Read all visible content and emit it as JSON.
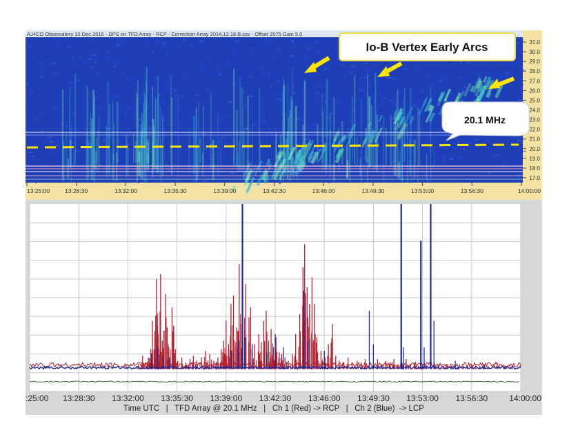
{
  "colors": {
    "spectrogram_bg": "#1f3fb8",
    "spectrogram_bright": "#3fd6c8",
    "freq_axis_bg": "#f3e2a3",
    "dashed_line": "#ffe600",
    "callout_border": "#e6d94a",
    "arrow": "#ffe600",
    "series_rcp": "#b21f2d",
    "series_lcp": "#1a2a9c",
    "series_baseline": "#2f6b22",
    "grid": "#c8c8c8"
  },
  "spectrogram": {
    "header": "AJ4CO Observatory 10 Dec 2016  -  DPS on TFD Array  -  RCP  -  Correction Array 2014.12.18 B.csv  -  Offset 2075  Gain 5.0",
    "callout_title": "Io-B Vertex Early Arcs",
    "callout_freq": "20.1 MHz",
    "arrow_icons": [
      "arrow-icon",
      "arrow-icon",
      "arrow-icon"
    ]
  },
  "chart_data": [
    {
      "type": "heatmap",
      "title": "AJ4CO Observatory 10 Dec 2016  -  DPS on TFD Array  -  RCP  -  Correction Array 2014.12.18 B.csv  -  Offset 2075  Gain 5.0",
      "x_ticks": [
        "13:25:00",
        "13:28:30",
        "13:32:00",
        "13:35:30",
        "13:39:00",
        "13:42:30",
        "13:46:00",
        "13:49:30",
        "13:53:00",
        "13:56:30",
        "14:00:00"
      ],
      "y_ticks": [
        "31.0",
        "30.0",
        "29.0",
        "28.0",
        "27.0",
        "26.0",
        "25.0",
        "24.0",
        "23.0",
        "22.0",
        "21.0",
        "20.0",
        "19.0",
        "18.0",
        "17.0"
      ],
      "ylim": [
        16.5,
        31.5
      ],
      "marker_frequency": 20.1,
      "annotation": "Io-B Vertex Early Arcs"
    },
    {
      "type": "line",
      "xlabel": "Time UTC   |   TFD Array @ 20.1 MHz   |   Ch 1 (Red) -> RCP   |   Ch 2 (Blue)  -> LCP",
      "x_ticks": [
        ":25:00",
        "13:28:30",
        "13:32:00",
        "13:35:30",
        "13:39:00",
        "13:42:30",
        "13:46:00",
        "13:49:30",
        "13:53:00",
        "13:56:30",
        "14:00:00"
      ],
      "ylim": [
        0,
        100
      ],
      "grid": true,
      "series": [
        {
          "name": "Ch 1 (Red) -> RCP",
          "peaks": [
            [
              13.3,
              4
            ],
            [
              13.8,
              9
            ],
            [
              14.2,
              5
            ],
            [
              14.5,
              8
            ],
            [
              14.8,
              13
            ],
            [
              15.0,
              30
            ],
            [
              15.2,
              12
            ],
            [
              15.4,
              33
            ],
            [
              15.5,
              55
            ],
            [
              15.7,
              22
            ],
            [
              15.9,
              10
            ],
            [
              16.0,
              58
            ],
            [
              16.2,
              18
            ],
            [
              16.4,
              24
            ],
            [
              16.6,
              46
            ],
            [
              16.8,
              26
            ],
            [
              17.0,
              14
            ],
            [
              17.4,
              38
            ],
            [
              17.6,
              27
            ],
            [
              17.8,
              13
            ],
            [
              18.1,
              6
            ],
            [
              18.6,
              8
            ],
            [
              19.1,
              5
            ],
            [
              19.6,
              7
            ],
            [
              20.0,
              9
            ],
            [
              20.4,
              6
            ],
            [
              21.0,
              8
            ],
            [
              21.5,
              12
            ],
            [
              22.0,
              10
            ],
            [
              22.5,
              6
            ],
            [
              23.0,
              8
            ],
            [
              23.4,
              13
            ],
            [
              23.7,
              18
            ],
            [
              24.0,
              30
            ],
            [
              24.3,
              16
            ],
            [
              24.6,
              40
            ],
            [
              24.9,
              45
            ],
            [
              25.3,
              26
            ],
            [
              25.6,
              64
            ],
            [
              25.8,
              28
            ],
            [
              26.0,
              35
            ],
            [
              26.4,
              52
            ],
            [
              26.8,
              32
            ],
            [
              27.0,
              38
            ],
            [
              27.5,
              16
            ],
            [
              28.0,
              22
            ],
            [
              28.3,
              17
            ],
            [
              28.6,
              30
            ],
            [
              28.9,
              36
            ],
            [
              29.2,
              18
            ],
            [
              29.5,
              25
            ],
            [
              29.8,
              14
            ],
            [
              30.1,
              20
            ],
            [
              30.5,
              11
            ],
            [
              30.8,
              10
            ],
            [
              31.2,
              8
            ],
            [
              31.6,
              6
            ],
            [
              32.1,
              10
            ],
            [
              32.5,
              22
            ],
            [
              33.0,
              34
            ],
            [
              33.4,
              62
            ],
            [
              33.6,
              76
            ],
            [
              33.9,
              50
            ],
            [
              34.2,
              40
            ],
            [
              34.5,
              56
            ],
            [
              34.8,
              40
            ],
            [
              35.1,
              20
            ],
            [
              35.6,
              12
            ],
            [
              36.1,
              8
            ],
            [
              36.5,
              16
            ],
            [
              37.0,
              28
            ],
            [
              37.4,
              9
            ],
            [
              37.8,
              6
            ],
            [
              38.4,
              5
            ],
            [
              38.9,
              8
            ],
            [
              39.4,
              5
            ],
            [
              40.0,
              6
            ],
            [
              40.5,
              5
            ],
            [
              41.0,
              7
            ],
            [
              41.5,
              4
            ],
            [
              42.0,
              5
            ],
            [
              42.5,
              7
            ],
            [
              43.0,
              4
            ],
            [
              43.5,
              6
            ],
            [
              44.0,
              5
            ],
            [
              44.5,
              7
            ],
            [
              45.0,
              4
            ],
            [
              45.5,
              5
            ],
            [
              46.0,
              7
            ],
            [
              46.5,
              4
            ],
            [
              47.0,
              5
            ],
            [
              47.5,
              3
            ],
            [
              48.0,
              4
            ],
            [
              48.5,
              3
            ],
            [
              49.0,
              4
            ],
            [
              49.5,
              3
            ],
            [
              50.0,
              4
            ],
            [
              50.5,
              3
            ],
            [
              51.0,
              4
            ],
            [
              51.5,
              3
            ],
            [
              52.0,
              3
            ],
            [
              52.5,
              4
            ],
            [
              53.0,
              3
            ],
            [
              53.5,
              3
            ],
            [
              54.0,
              4
            ],
            [
              54.5,
              3
            ],
            [
              55.0,
              3
            ],
            [
              55.5,
              4
            ],
            [
              56.0,
              3
            ],
            [
              57.0,
              3
            ],
            [
              58.0,
              3
            ],
            [
              59.0,
              3
            ]
          ]
        },
        {
          "name": "Ch 2 (Blue)  -> LCP",
          "peaks": [
            [
              14.9,
              10
            ],
            [
              15.6,
              14
            ],
            [
              16.3,
              9
            ],
            [
              17.1,
              8
            ],
            [
              24.7,
              12
            ],
            [
              25.5,
              18
            ],
            [
              26.0,
              100
            ],
            [
              26.3,
              20
            ],
            [
              27.2,
              16
            ],
            [
              29.0,
              10
            ],
            [
              30.0,
              22
            ],
            [
              31.0,
              14
            ],
            [
              33.5,
              48
            ],
            [
              34.0,
              18
            ],
            [
              36.0,
              12
            ],
            [
              41.5,
              36
            ],
            [
              42.0,
              16
            ],
            [
              45.4,
              100
            ],
            [
              45.7,
              14
            ],
            [
              47.8,
              78
            ],
            [
              48.2,
              14
            ],
            [
              49.0,
              100
            ],
            [
              49.4,
              30
            ],
            [
              52.0,
              6
            ]
          ]
        },
        {
          "name": "baseline",
          "values": [
            2,
            2,
            2,
            2,
            2,
            2,
            2,
            2,
            2,
            2,
            2
          ]
        }
      ]
    }
  ]
}
